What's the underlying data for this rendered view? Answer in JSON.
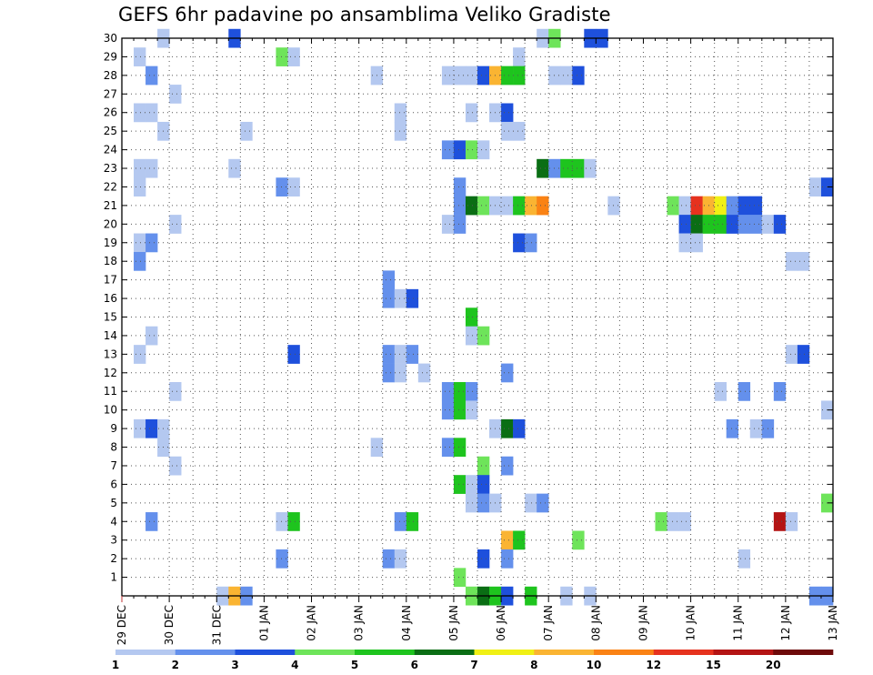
{
  "chart_data": {
    "type": "heatmap",
    "title": "GEFS 6hr padavine po ansamblima Veliko Gradiste",
    "xlabel": "",
    "ylabel": "",
    "x_unit": "6h step",
    "x_range": [
      0,
      60
    ],
    "y_range": [
      0,
      30
    ],
    "y_ticks": [
      1,
      2,
      3,
      4,
      5,
      6,
      7,
      8,
      9,
      10,
      11,
      12,
      13,
      14,
      15,
      16,
      17,
      18,
      19,
      20,
      21,
      22,
      23,
      24,
      25,
      26,
      27,
      28,
      29,
      30
    ],
    "x_ticks": [
      {
        "label": "29 DEC",
        "step": 0
      },
      {
        "label": "30 DEC",
        "step": 4
      },
      {
        "label": "31 DEC",
        "step": 8
      },
      {
        "label": "01 JAN",
        "step": 12
      },
      {
        "label": "02 JAN",
        "step": 16
      },
      {
        "label": "03 JAN",
        "step": 20
      },
      {
        "label": "04 JAN",
        "step": 24
      },
      {
        "label": "05 JAN",
        "step": 28
      },
      {
        "label": "06 JAN",
        "step": 32
      },
      {
        "label": "07 JAN",
        "step": 36
      },
      {
        "label": "08 JAN",
        "step": 40
      },
      {
        "label": "09 JAN",
        "step": 44
      },
      {
        "label": "10 JAN",
        "step": 48
      },
      {
        "label": "11 JAN",
        "step": 52
      },
      {
        "label": "12 JAN",
        "step": 56
      },
      {
        "label": "13 JAN",
        "step": 60
      }
    ],
    "grid": true,
    "legend": {
      "placement": "bottom",
      "colors": [
        "#b4c8f0",
        "#6490ec",
        "#1e50dc",
        "#6ee45a",
        "#1ec41e",
        "#0a6e14",
        "#f0f014",
        "#fab432",
        "#fa8214",
        "#e6321e",
        "#b41414",
        "#6e0a0a"
      ],
      "labels": [
        "1",
        "2",
        "3",
        "4",
        "5",
        "6",
        "7",
        "8",
        "10",
        "12",
        "15",
        "20"
      ]
    },
    "cells": [
      {
        "m": 30,
        "t": [
          [
            3,
            1
          ],
          [
            9,
            3
          ],
          [
            35,
            1
          ],
          [
            36,
            4
          ],
          [
            39,
            3
          ],
          [
            40,
            3
          ]
        ]
      },
      {
        "m": 29,
        "t": [
          [
            1,
            1
          ],
          [
            13,
            4
          ],
          [
            14,
            1
          ],
          [
            33,
            1
          ]
        ]
      },
      {
        "m": 28,
        "t": [
          [
            2,
            2
          ],
          [
            21,
            1
          ],
          [
            27,
            1
          ],
          [
            28,
            1
          ],
          [
            29,
            1
          ],
          [
            30,
            3
          ],
          [
            31,
            8
          ],
          [
            32,
            5
          ],
          [
            33,
            5
          ],
          [
            36,
            1
          ],
          [
            37,
            1
          ],
          [
            38,
            3
          ]
        ]
      },
      {
        "m": 27,
        "t": [
          [
            4,
            1
          ]
        ]
      },
      {
        "m": 26,
        "t": [
          [
            1,
            1
          ],
          [
            2,
            1
          ],
          [
            23,
            1
          ],
          [
            29,
            1
          ],
          [
            31,
            1
          ],
          [
            32,
            3
          ]
        ]
      },
      {
        "m": 25,
        "t": [
          [
            3,
            1
          ],
          [
            10,
            1
          ],
          [
            23,
            1
          ],
          [
            32,
            1
          ],
          [
            33,
            1
          ]
        ]
      },
      {
        "m": 24,
        "t": [
          [
            27,
            2
          ],
          [
            28,
            3
          ],
          [
            29,
            4
          ],
          [
            30,
            1
          ]
        ]
      },
      {
        "m": 23,
        "t": [
          [
            1,
            1
          ],
          [
            2,
            1
          ],
          [
            9,
            1
          ],
          [
            35,
            6
          ],
          [
            36,
            2
          ],
          [
            37,
            5
          ],
          [
            38,
            5
          ],
          [
            39,
            1
          ]
        ]
      },
      {
        "m": 22,
        "t": [
          [
            1,
            1
          ],
          [
            13,
            2
          ],
          [
            14,
            1
          ],
          [
            28,
            2
          ],
          [
            58,
            1
          ],
          [
            59,
            3
          ]
        ]
      },
      {
        "m": 21,
        "t": [
          [
            28,
            2
          ],
          [
            29,
            6
          ],
          [
            30,
            4
          ],
          [
            31,
            1
          ],
          [
            32,
            1
          ],
          [
            33,
            5
          ],
          [
            34,
            8
          ],
          [
            35,
            9
          ],
          [
            41,
            1
          ],
          [
            46,
            4
          ],
          [
            47,
            1
          ],
          [
            48,
            10
          ],
          [
            49,
            8
          ],
          [
            50,
            7
          ],
          [
            51,
            2
          ],
          [
            52,
            3
          ],
          [
            53,
            3
          ]
        ]
      },
      {
        "m": 20,
        "t": [
          [
            4,
            1
          ],
          [
            27,
            1
          ],
          [
            28,
            2
          ],
          [
            47,
            3
          ],
          [
            48,
            6
          ],
          [
            49,
            5
          ],
          [
            50,
            5
          ],
          [
            51,
            3
          ],
          [
            52,
            2
          ],
          [
            53,
            2
          ],
          [
            54,
            1
          ],
          [
            55,
            3
          ]
        ]
      },
      {
        "m": 19,
        "t": [
          [
            1,
            1
          ],
          [
            2,
            2
          ],
          [
            33,
            3
          ],
          [
            34,
            2
          ],
          [
            47,
            1
          ],
          [
            48,
            1
          ]
        ]
      },
      {
        "m": 18,
        "t": [
          [
            1,
            2
          ],
          [
            56,
            1
          ],
          [
            57,
            1
          ]
        ]
      },
      {
        "m": 17,
        "t": [
          [
            22,
            2
          ]
        ]
      },
      {
        "m": 16,
        "t": [
          [
            22,
            2
          ],
          [
            23,
            1
          ],
          [
            24,
            3
          ]
        ]
      },
      {
        "m": 15,
        "t": [
          [
            29,
            5
          ]
        ]
      },
      {
        "m": 14,
        "t": [
          [
            2,
            1
          ],
          [
            29,
            1
          ],
          [
            30,
            4
          ]
        ]
      },
      {
        "m": 13,
        "t": [
          [
            1,
            1
          ],
          [
            14,
            3
          ],
          [
            22,
            2
          ],
          [
            23,
            1
          ],
          [
            24,
            2
          ],
          [
            56,
            1
          ],
          [
            57,
            3
          ]
        ]
      },
      {
        "m": 12,
        "t": [
          [
            22,
            2
          ],
          [
            23,
            1
          ],
          [
            25,
            1
          ],
          [
            32,
            2
          ]
        ]
      },
      {
        "m": 11,
        "t": [
          [
            4,
            1
          ],
          [
            27,
            2
          ],
          [
            28,
            5
          ],
          [
            29,
            2
          ],
          [
            50,
            1
          ],
          [
            52,
            2
          ],
          [
            55,
            2
          ]
        ]
      },
      {
        "m": 10,
        "t": [
          [
            27,
            2
          ],
          [
            28,
            5
          ],
          [
            29,
            1
          ],
          [
            59,
            1
          ]
        ]
      },
      {
        "m": 9,
        "t": [
          [
            1,
            1
          ],
          [
            2,
            3
          ],
          [
            3,
            1
          ],
          [
            31,
            1
          ],
          [
            32,
            6
          ],
          [
            33,
            3
          ],
          [
            51,
            2
          ],
          [
            53,
            1
          ],
          [
            54,
            2
          ]
        ]
      },
      {
        "m": 8,
        "t": [
          [
            3,
            1
          ],
          [
            21,
            1
          ],
          [
            27,
            2
          ],
          [
            28,
            5
          ]
        ]
      },
      {
        "m": 7,
        "t": [
          [
            4,
            1
          ],
          [
            30,
            4
          ],
          [
            32,
            2
          ]
        ]
      },
      {
        "m": 6,
        "t": [
          [
            28,
            5
          ],
          [
            29,
            1
          ],
          [
            30,
            3
          ]
        ]
      },
      {
        "m": 5,
        "t": [
          [
            29,
            1
          ],
          [
            30,
            2
          ],
          [
            31,
            1
          ],
          [
            34,
            1
          ],
          [
            35,
            2
          ],
          [
            59,
            4
          ]
        ]
      },
      {
        "m": 4,
        "t": [
          [
            2,
            2
          ],
          [
            13,
            1
          ],
          [
            14,
            5
          ],
          [
            23,
            2
          ],
          [
            24,
            5
          ],
          [
            45,
            4
          ],
          [
            46,
            1
          ],
          [
            47,
            1
          ],
          [
            55,
            11
          ],
          [
            56,
            1
          ]
        ]
      },
      {
        "m": 3,
        "t": [
          [
            32,
            8
          ],
          [
            33,
            5
          ],
          [
            38,
            4
          ]
        ]
      },
      {
        "m": 2,
        "t": [
          [
            13,
            2
          ],
          [
            22,
            2
          ],
          [
            23,
            1
          ],
          [
            30,
            3
          ],
          [
            32,
            2
          ],
          [
            52,
            1
          ]
        ]
      },
      {
        "m": 1,
        "t": [
          [
            28,
            4
          ]
        ]
      },
      {
        "m": 0,
        "t": [
          [
            8,
            1
          ],
          [
            9,
            8
          ],
          [
            10,
            2
          ],
          [
            29,
            4
          ],
          [
            30,
            6
          ],
          [
            31,
            5
          ],
          [
            32,
            3
          ],
          [
            34,
            5
          ],
          [
            37,
            1
          ],
          [
            39,
            1
          ],
          [
            58,
            2
          ],
          [
            59,
            2
          ]
        ]
      }
    ]
  }
}
